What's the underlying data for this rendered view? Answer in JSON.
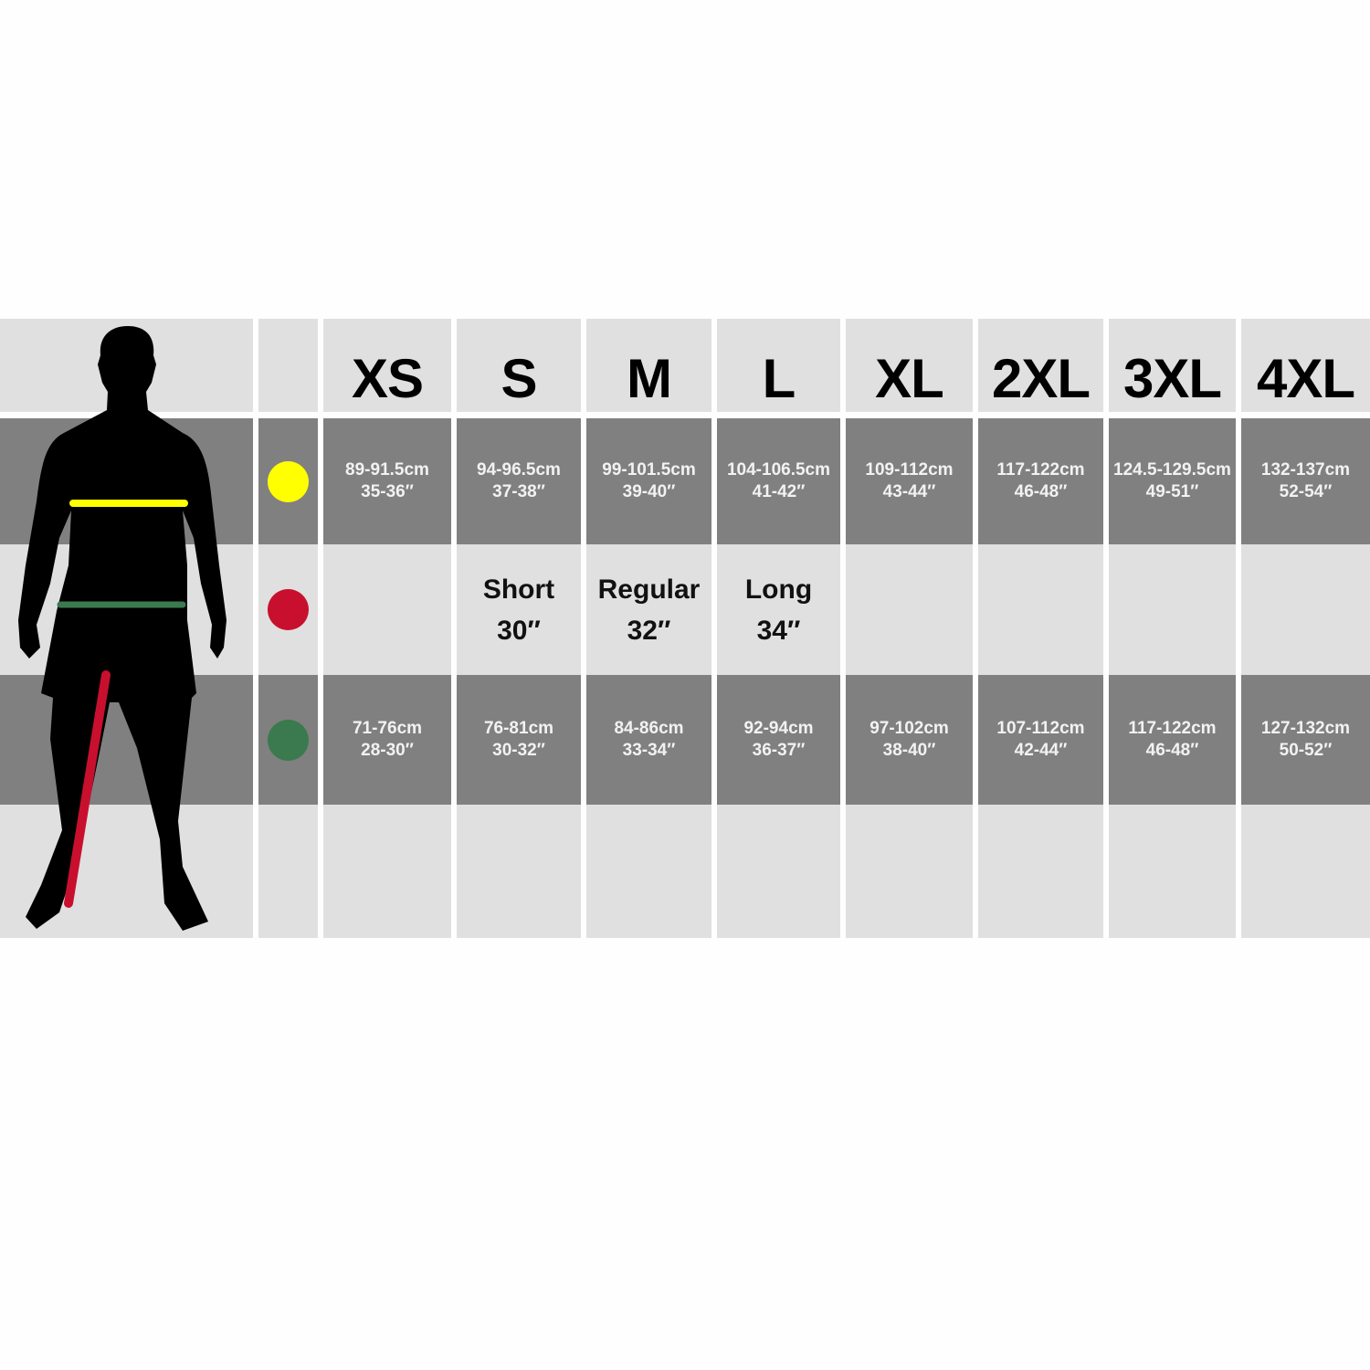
{
  "sizes": [
    "XS",
    "S",
    "M",
    "L",
    "XL",
    "2XL",
    "3XL",
    "4XL"
  ],
  "colors": {
    "chest": "#ffff00",
    "inseam": "#c8102e",
    "waist": "#3a7a4e",
    "dark": "#808080",
    "light": "#e0e0e0"
  },
  "chest": [
    {
      "cm": "89-91.5cm",
      "in": "35-36″"
    },
    {
      "cm": "94-96.5cm",
      "in": "37-38″"
    },
    {
      "cm": "99-101.5cm",
      "in": "39-40″"
    },
    {
      "cm": "104-106.5cm",
      "in": "41-42″"
    },
    {
      "cm": "109-112cm",
      "in": "43-44″"
    },
    {
      "cm": "117-122cm",
      "in": "46-48″"
    },
    {
      "cm": "124.5-129.5cm",
      "in": "49-51″"
    },
    {
      "cm": "132-137cm",
      "in": "52-54″"
    }
  ],
  "inseam": [
    null,
    {
      "label": "Short",
      "value": "30″"
    },
    {
      "label": "Regular",
      "value": "32″"
    },
    {
      "label": "Long",
      "value": "34″"
    },
    null,
    null,
    null,
    null
  ],
  "waist": [
    {
      "cm": "71-76cm",
      "in": "28-30″"
    },
    {
      "cm": "76-81cm",
      "in": "30-32″"
    },
    {
      "cm": "84-86cm",
      "in": "33-34″"
    },
    {
      "cm": "92-94cm",
      "in": "36-37″"
    },
    {
      "cm": "97-102cm",
      "in": "38-40″"
    },
    {
      "cm": "107-112cm",
      "in": "42-44″"
    },
    {
      "cm": "117-122cm",
      "in": "46-48″"
    },
    {
      "cm": "127-132cm",
      "in": "50-52″"
    }
  ]
}
